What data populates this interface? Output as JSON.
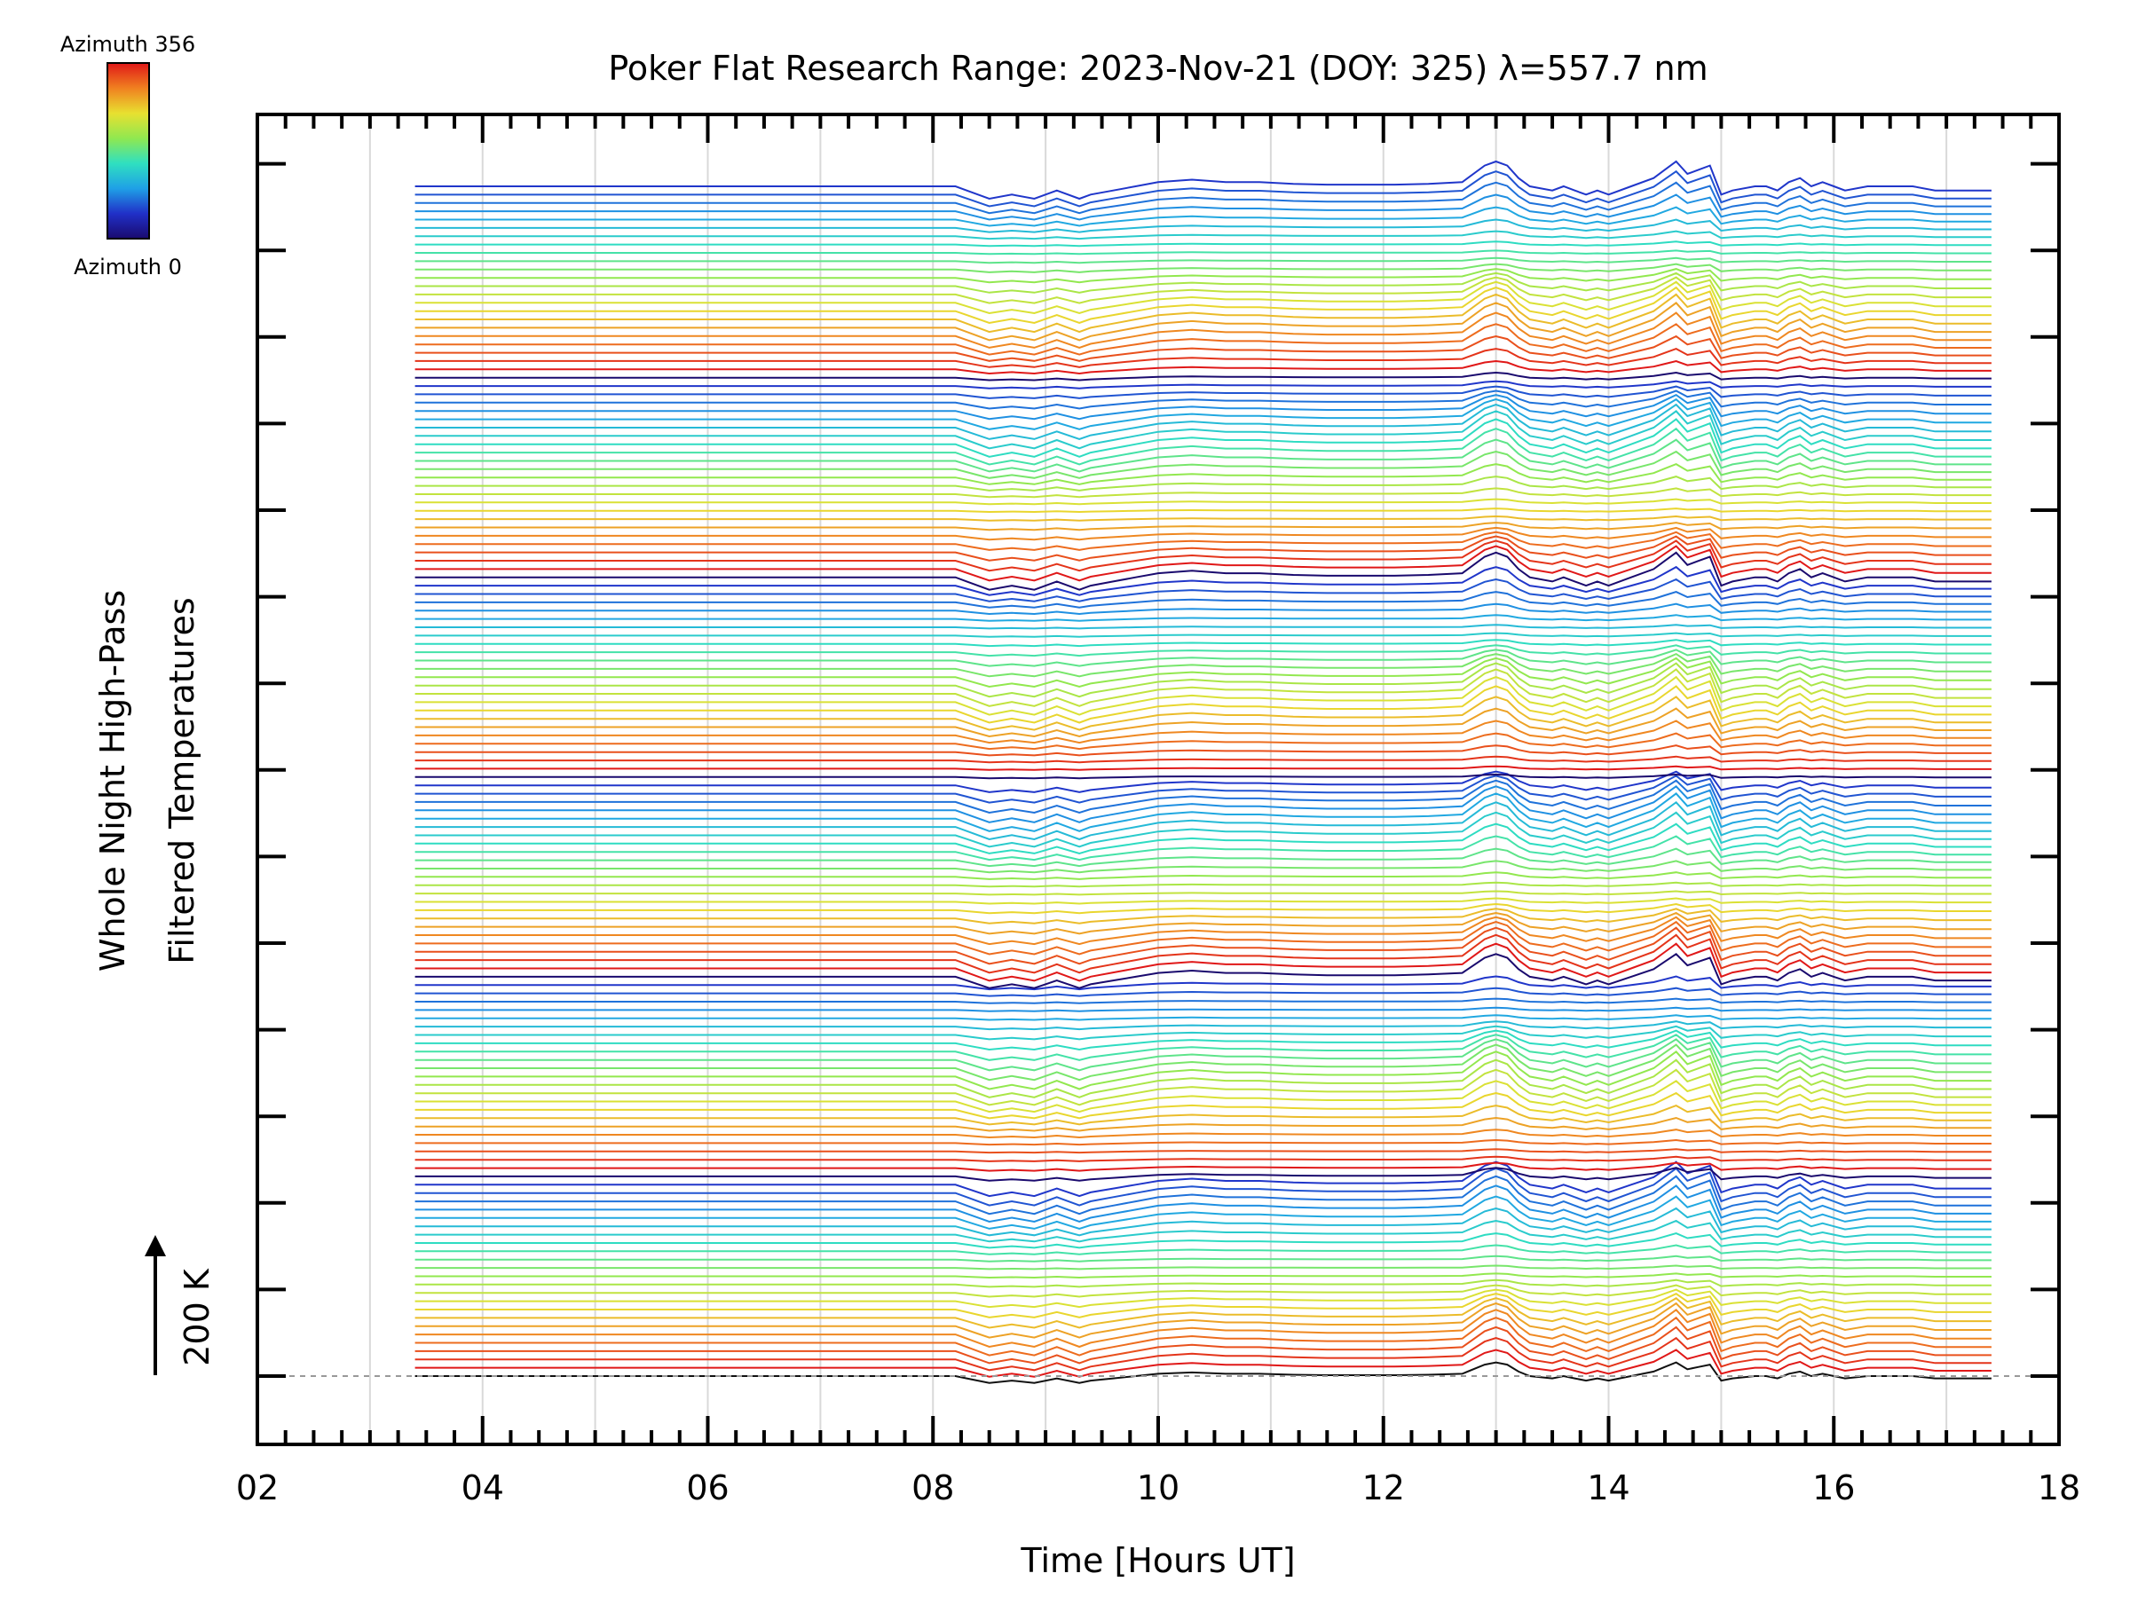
{
  "chart_data": {
    "type": "line",
    "title": "Poker Flat Research Range: 2023-Nov-21 (DOY: 325) λ=557.7 nm",
    "xlabel": "Time [Hours UT]",
    "ylabel_line1": "Whole Night High-Pass",
    "ylabel_line2": "Filtered Temperatures",
    "scale_label": "200 K",
    "xlim": [
      2,
      18
    ],
    "x_ticks": [
      "02",
      "04",
      "06",
      "08",
      "10",
      "12",
      "14",
      "16",
      "18"
    ],
    "x_tick_values": [
      2,
      4,
      6,
      8,
      10,
      12,
      14,
      16,
      18
    ],
    "grid": "vertical every 1 hour",
    "colorbar": {
      "top_label": "Azimuth 356",
      "bottom_label": "Azimuth 0",
      "colormap": "rainbow",
      "colors": [
        "#1a0a6e",
        "#2030c8",
        "#1fa0e6",
        "#2fe0c0",
        "#90e850",
        "#e8e030",
        "#f08020",
        "#e01818"
      ]
    },
    "stack": {
      "groups": 6,
      "lines_per_group": 24,
      "offset_per_line_K": 25,
      "group_colors_cycle": "azimuth 0 to 356 (rainbow)"
    },
    "series": [
      {
        "x": [
          3.4,
          4.0,
          5.0,
          6.0,
          7.1,
          8.2,
          8.3,
          8.5,
          8.7,
          8.9,
          9.1,
          9.3,
          9.4,
          9.6,
          9.8,
          10.0,
          10.3,
          10.6,
          10.9,
          11.2,
          11.5,
          11.8,
          12.1,
          12.4,
          12.7,
          12.9,
          13.0,
          13.1,
          13.2,
          13.3,
          13.5,
          13.6,
          13.7,
          13.8,
          13.9,
          14.0,
          14.2,
          14.4,
          14.5,
          14.6,
          14.7,
          14.8,
          14.9,
          15.0,
          15.1,
          15.3,
          15.4,
          15.5,
          15.6,
          15.7,
          15.8,
          15.9,
          16.0,
          16.1,
          16.3,
          16.5,
          16.7,
          16.9,
          17.1,
          17.3,
          17.4
        ],
        "y": [
          0,
          0,
          0,
          0,
          0,
          0,
          -5,
          -15,
          -10,
          -15,
          -5,
          -15,
          -10,
          -5,
          0,
          5,
          8,
          5,
          5,
          3,
          2,
          2,
          2,
          3,
          5,
          25,
          30,
          25,
          10,
          0,
          -5,
          0,
          -5,
          -10,
          -5,
          -10,
          0,
          10,
          20,
          30,
          15,
          20,
          25,
          -10,
          -5,
          0,
          0,
          -5,
          5,
          10,
          0,
          5,
          0,
          -5,
          0,
          0,
          0,
          -5,
          -5,
          -5,
          -5
        ]
      }
    ]
  }
}
